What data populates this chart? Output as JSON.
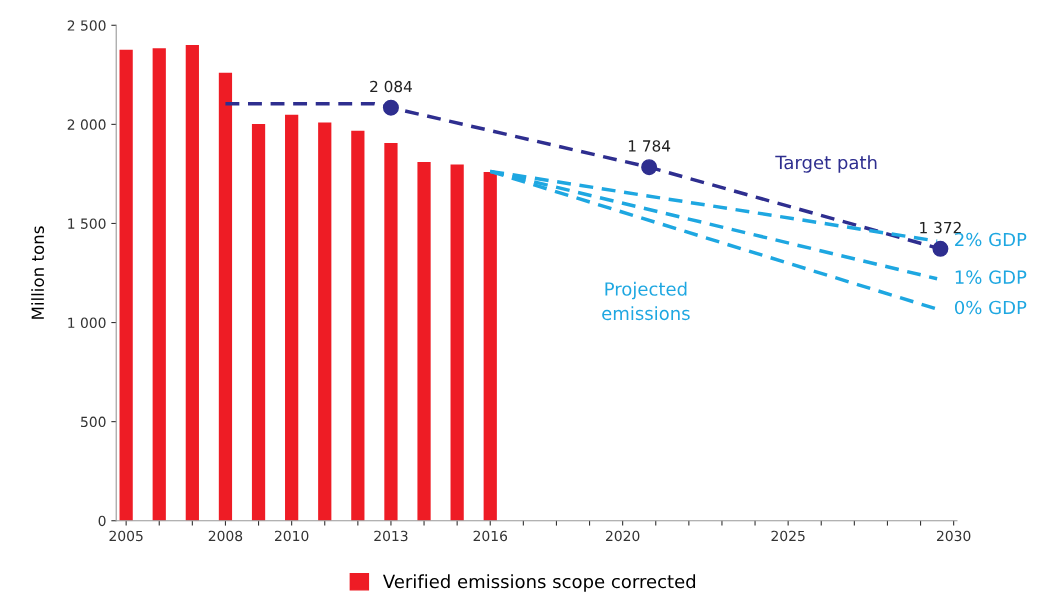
{
  "chart_data": {
    "type": "bar",
    "ylabel": "Million tons",
    "xlim": [
      2004.7,
      2030.1
    ],
    "xticks": [
      2005,
      {
        "value": 2006,
        "label": null
      },
      {
        "value": 2007,
        "label": null
      },
      2008,
      {
        "value": 2009,
        "label": null
      },
      2010,
      {
        "value": 2011,
        "label": null
      },
      {
        "value": 2012,
        "label": null
      },
      2013,
      {
        "value": 2014,
        "label": null
      },
      {
        "value": 2015,
        "label": null
      },
      2016,
      {
        "value": 2017,
        "label": null
      },
      {
        "value": 2018,
        "label": null
      },
      {
        "value": 2019,
        "label": null
      },
      2020,
      {
        "value": 2021,
        "label": null
      },
      {
        "value": 2022,
        "label": null
      },
      {
        "value": 2023,
        "label": null
      },
      {
        "value": 2024,
        "label": null
      },
      2025,
      {
        "value": 2026,
        "label": null
      },
      {
        "value": 2027,
        "label": null
      },
      {
        "value": 2028,
        "label": null
      },
      {
        "value": 2029,
        "label": null
      },
      2030
    ],
    "ylim": [
      0,
      2500
    ],
    "yticks": [
      0,
      500,
      {
        "value": 1000,
        "label": "1 000"
      },
      {
        "value": 1500,
        "label": "1 500"
      },
      {
        "value": 2000,
        "label": "2 000"
      },
      {
        "value": 2500,
        "label": "2 500"
      }
    ],
    "grid": false,
    "legend": "bottom",
    "series": [
      {
        "name": "Verified emissions scope corrected",
        "color": "#ee1c25",
        "x": [
          2005,
          2006,
          2007,
          2008,
          2009,
          2010,
          2011,
          2012,
          2013,
          2014,
          2015,
          2016
        ],
        "values": [
          2376,
          2384,
          2401,
          2260,
          2002,
          2049,
          2010,
          1968,
          1906,
          1810,
          1798,
          1760
        ]
      },
      {
        "type": "line",
        "color": "#2e2e8f",
        "line_style": "dashed",
        "x": [
          2008,
          2012.5,
          2013,
          2020.8,
          2029.6
        ],
        "values": [
          2104,
          2104,
          2084,
          1784,
          1372
        ]
      },
      {
        "type": "scatter",
        "color": "#2e2e8f",
        "marker": "circle",
        "x": [
          2013,
          2020.8,
          2029.6
        ],
        "values": [
          2084,
          1784,
          1372
        ],
        "value_labels": [
          "2 084",
          "1 784",
          "1 372"
        ]
      },
      {
        "type": "line",
        "name": "2% GDP",
        "color": "#1ea7e1",
        "line_style": "dashed",
        "x": [
          2016,
          2029.5
        ],
        "values": [
          1763,
          1411
        ]
      },
      {
        "type": "line",
        "name": "1% GDP",
        "color": "#1ea7e1",
        "line_style": "dashed",
        "x": [
          2016,
          2029.5
        ],
        "values": [
          1763,
          1221
        ]
      },
      {
        "type": "line",
        "name": "0% GDP",
        "color": "#1ea7e1",
        "line_style": "dashed",
        "x": [
          2016,
          2029.5
        ],
        "values": [
          1763,
          1068
        ]
      }
    ],
    "annotations": [
      "Target path",
      "Projected\nemissions"
    ]
  }
}
